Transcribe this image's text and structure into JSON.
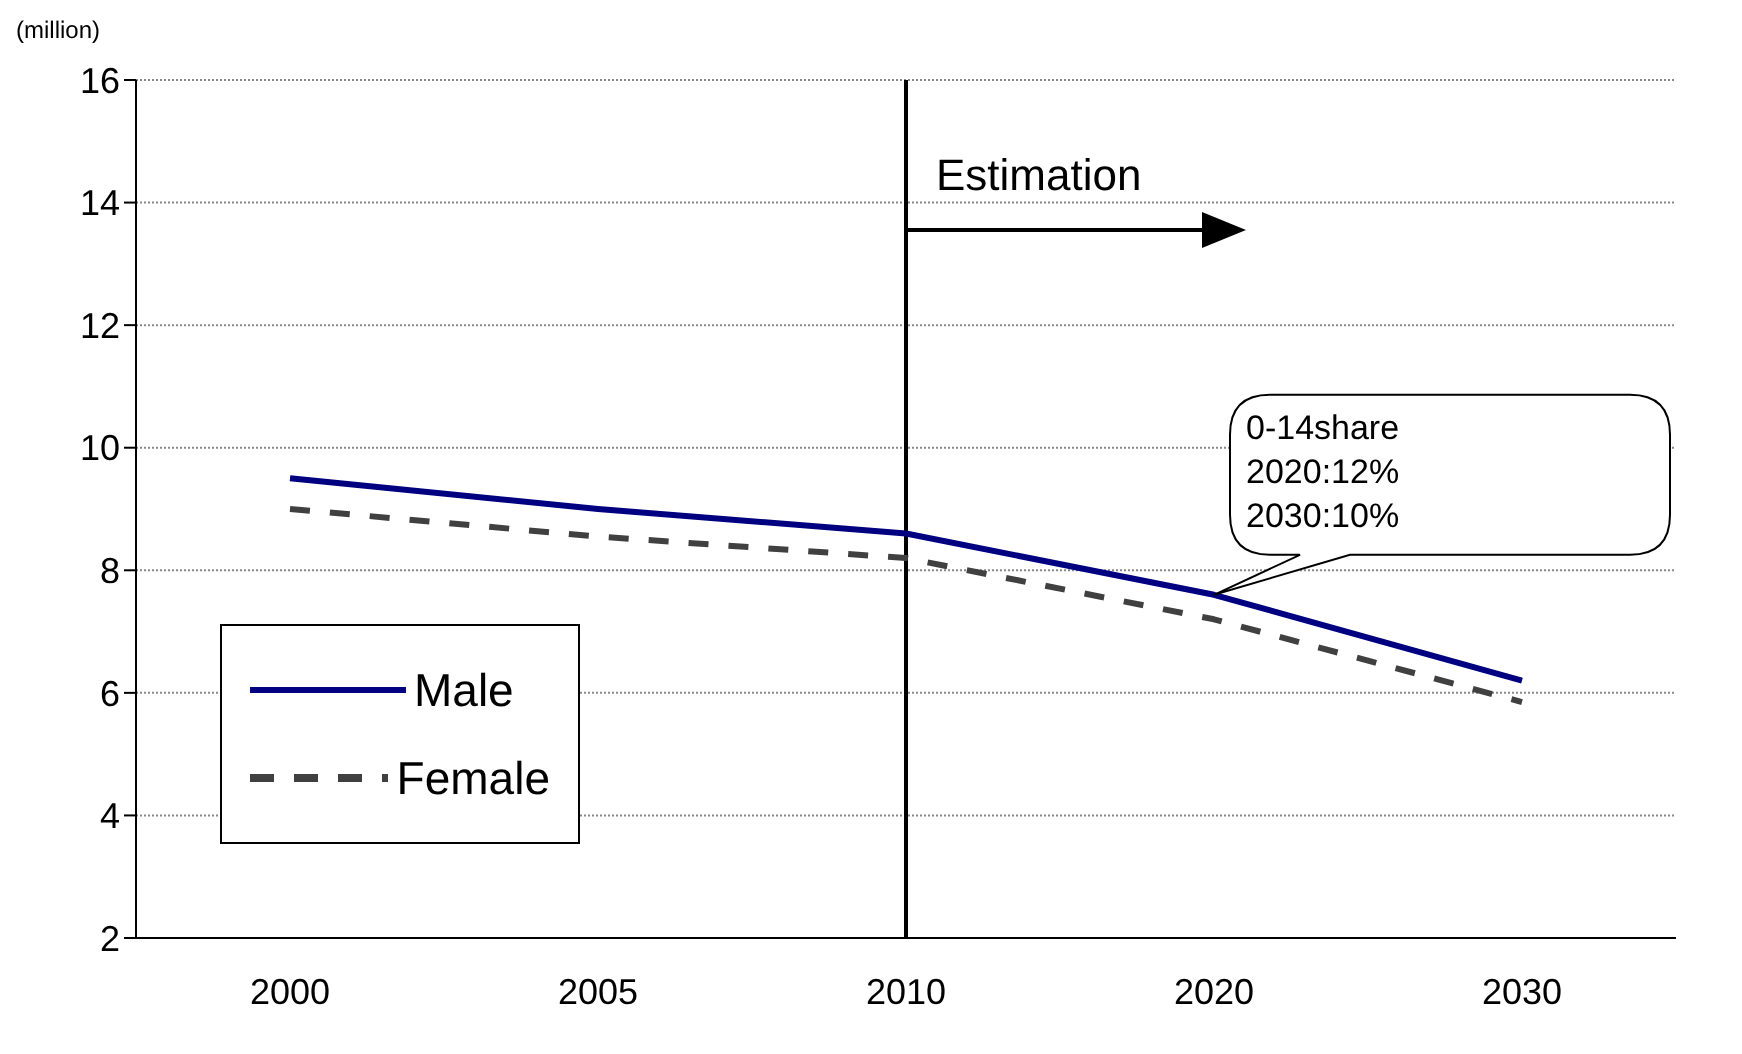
{
  "chart_data": {
    "type": "line",
    "ylabel": "(million)",
    "categories": [
      "2000",
      "2005",
      "2010",
      "2020",
      "2030"
    ],
    "series": [
      {
        "name": "Male",
        "color": "#000080",
        "values": [
          9.5,
          9.0,
          8.6,
          7.6,
          6.2
        ],
        "line_style": "solid"
      },
      {
        "name": "Female",
        "color": "#404040",
        "values": [
          9.0,
          8.55,
          8.2,
          7.2,
          5.85
        ],
        "line_style": "dashed"
      }
    ],
    "ylim": [
      2,
      16
    ],
    "yticks": [
      2,
      4,
      6,
      8,
      10,
      12,
      14,
      16
    ],
    "grid": "y",
    "legend": "bottom left",
    "marker": "none",
    "ref_lines": [
      {
        "axis": "x",
        "value": "2010",
        "label": "Estimation",
        "color": "#000000"
      }
    ],
    "annotations": [
      {
        "text": "0-14share\n2020:12%\n2030:10%",
        "x": "2020",
        "y": 7.6
      }
    ]
  }
}
